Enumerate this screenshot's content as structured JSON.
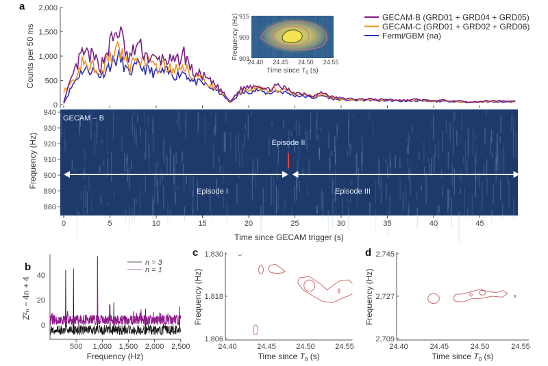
{
  "chart_data": [
    {
      "panel": "a",
      "type": "line",
      "ylabel": "Counts per 50 ms",
      "ylim": [
        0,
        2000
      ],
      "yticks": [
        "0",
        "500",
        "1,000",
        "1,500",
        "2,000"
      ],
      "xlim": [
        -0.2,
        49.5
      ],
      "x": [
        0,
        1,
        2,
        3,
        4,
        5,
        6,
        7,
        8,
        9,
        10,
        11,
        12,
        13,
        14,
        15,
        16,
        17,
        18,
        19,
        20,
        21,
        22,
        23,
        24,
        25,
        26,
        27,
        28,
        29,
        30,
        31,
        32,
        33,
        34,
        35,
        36,
        37,
        38,
        39,
        40,
        41,
        42,
        43,
        44,
        45,
        46,
        47,
        48,
        49
      ],
      "series": [
        {
          "name": "GECAM-B (GRD01 + GRD04 + GRD05)",
          "color": "#7b1f86",
          "values": [
            60,
            600,
            1050,
            1000,
            800,
            1250,
            1550,
            900,
            1250,
            1000,
            900,
            950,
            850,
            1050,
            650,
            600,
            450,
            300,
            60,
            300,
            380,
            420,
            300,
            380,
            330,
            250,
            230,
            180,
            250,
            160,
            130,
            120,
            110,
            120,
            100,
            110,
            100,
            90,
            110,
            90,
            80,
            90,
            85,
            70,
            50,
            70,
            80,
            80,
            70,
            75
          ]
        },
        {
          "name": "GECAM-C (GRD01 + GRD02 + GRD06)",
          "color": "#f0901e",
          "values": [
            300,
            500,
            850,
            850,
            700,
            950,
            1150,
            750,
            950,
            850,
            750,
            800,
            700,
            800,
            550,
            520,
            400,
            270,
            50,
            260,
            320,
            360,
            270,
            330,
            290,
            220,
            200,
            160,
            220,
            140,
            115,
            105,
            100,
            105,
            90,
            95,
            90,
            80,
            95,
            80,
            70,
            80,
            75,
            60,
            45,
            60,
            70,
            70,
            60,
            65
          ]
        },
        {
          "name": "Fermi/GBM (na)",
          "color": "#2b2fb8",
          "values": [
            30,
            420,
            720,
            720,
            600,
            820,
            980,
            640,
            800,
            720,
            640,
            680,
            600,
            680,
            470,
            440,
            340,
            230,
            40,
            220,
            270,
            300,
            230,
            280,
            250,
            190,
            170,
            140,
            190,
            120,
            100,
            90,
            85,
            90,
            80,
            80,
            75,
            70,
            80,
            70,
            60,
            70,
            65,
            55,
            40,
            55,
            60,
            60,
            55,
            60
          ]
        }
      ],
      "inset": {
        "type": "heatmap",
        "xlabel": "Time since T0 (s)",
        "ylabel": "Frequency (Hz)",
        "xticks": [
          "24.40",
          "24.45",
          "24.50",
          "24.55"
        ],
        "yticks": [
          "903",
          "909",
          "915"
        ],
        "xlim": [
          24.4,
          24.56
        ],
        "ylim": [
          903,
          915
        ]
      }
    },
    {
      "panel": "a-spectrogram",
      "type": "heatmap",
      "title": "GECAM – B",
      "xlabel": "Time since GECAM trigger (s)",
      "ylabel": "Frequency (Hz)",
      "xlim": [
        -0.2,
        49.5
      ],
      "ylim": [
        877,
        940
      ],
      "xticks": [
        "0",
        "5",
        "10",
        "15",
        "20",
        "25",
        "30",
        "35",
        "40",
        "45"
      ],
      "yticks": [
        "880",
        "890",
        "900",
        "910",
        "920",
        "930",
        "940"
      ],
      "annotations": [
        {
          "text": "Episode I",
          "from": 0,
          "to": 24.3
        },
        {
          "text": "Episode II",
          "at": 24.5,
          "freq": 910
        },
        {
          "text": "Episode III",
          "from": 24.7,
          "to": 49.3
        }
      ]
    },
    {
      "panel": "b",
      "type": "line",
      "xlabel": "Frequency (Hz)",
      "ylabel": "Z²ₙ − 4n + 4",
      "xlim": [
        0,
        2500
      ],
      "ylim": [
        -12,
        58
      ],
      "xticks": [
        "500",
        "1,000",
        "1,500",
        "2,000",
        "2,500"
      ],
      "yticks": [
        "0",
        "20",
        "40"
      ],
      "series": [
        {
          "name": "n = 3",
          "color": "#111111",
          "baseline": [
            -8,
            0
          ],
          "peaks": [
            [
              300,
              44
            ],
            [
              450,
              45
            ],
            [
              910,
              55
            ],
            [
              1150,
              17
            ],
            [
              1220,
              18
            ],
            [
              1830,
              13
            ],
            [
              2480,
              15
            ]
          ]
        },
        {
          "name": "n = 1",
          "color": "#8e1b8c",
          "baseline": [
            0,
            8
          ],
          "peaks": [
            [
              910,
              54
            ],
            [
              1140,
              16
            ],
            [
              1600,
              11
            ],
            [
              2100,
              10
            ]
          ]
        }
      ]
    },
    {
      "panel": "c",
      "type": "contour",
      "xlabel": "Time since T0 (s)",
      "ylabel": "Frequency (Hz)",
      "xlim": [
        24.4,
        24.56
      ],
      "ylim": [
        1806,
        1830
      ],
      "xticks": [
        "24.40",
        "24.45",
        "24.50",
        "24.55"
      ],
      "yticks": [
        "1,806",
        "1,818",
        "1,830"
      ],
      "color": "#c86a6a",
      "ellipses": [
        [
          24.443,
          1825.5,
          0.003,
          1.2
        ],
        [
          24.505,
          1821,
          0.007,
          1.6
        ],
        [
          24.543,
          1819.5,
          0.001,
          0.6
        ],
        [
          24.436,
          1808.5,
          0.003,
          1.4
        ]
      ],
      "paths": [
        [
          [
            24.413,
            1829.8
          ],
          [
            24.416,
            1829.4
          ],
          [
            24.419,
            1829.8
          ]
        ],
        [
          [
            24.452,
            1825.8
          ],
          [
            24.455,
            1826.8
          ],
          [
            24.462,
            1827
          ],
          [
            24.468,
            1826
          ],
          [
            24.474,
            1825
          ],
          [
            24.47,
            1824.6
          ],
          [
            24.462,
            1824.4
          ],
          [
            24.455,
            1824.8
          ],
          [
            24.452,
            1825.8
          ]
        ],
        [
          [
            24.56,
            1821.6
          ],
          [
            24.555,
            1822.6
          ],
          [
            24.545,
            1822.5
          ],
          [
            24.535,
            1821
          ],
          [
            24.528,
            1819.8
          ],
          [
            24.518,
            1821.6
          ],
          [
            24.505,
            1823.6
          ],
          [
            24.492,
            1823.2
          ],
          [
            24.49,
            1821.8
          ],
          [
            24.497,
            1819.8
          ],
          [
            24.51,
            1818
          ],
          [
            24.522,
            1816.5
          ],
          [
            24.535,
            1816.2
          ],
          [
            24.545,
            1817.2
          ],
          [
            24.56,
            1818.6
          ]
        ]
      ]
    },
    {
      "panel": "d",
      "type": "contour",
      "xlabel": "Time since T0 (s)",
      "ylabel": "Frequency (Hz)",
      "xlim": [
        24.4,
        24.56
      ],
      "ylim": [
        2709,
        2745
      ],
      "xticks": [
        "24.40",
        "24.45",
        "24.50",
        "24.55"
      ],
      "yticks": [
        "2,709",
        "2,727",
        "2,745"
      ],
      "color": "#c86a6a",
      "ellipses": [
        [
          24.443,
          2726,
          0.007,
          2.1
        ],
        [
          24.489,
          2727.6,
          0.0015,
          0.6
        ],
        [
          24.503,
          2728.5,
          0.004,
          1
        ],
        [
          24.543,
          2727,
          0.0007,
          0.5
        ]
      ],
      "paths": [
        [
          [
            24.467,
            2726
          ],
          [
            24.47,
            2727.8
          ],
          [
            24.48,
            2728
          ],
          [
            24.49,
            2729
          ],
          [
            24.5,
            2730
          ],
          [
            24.51,
            2729
          ],
          [
            24.52,
            2728.5
          ],
          [
            24.528,
            2729.4
          ],
          [
            24.534,
            2728.2
          ],
          [
            24.528,
            2726.6
          ],
          [
            24.515,
            2727
          ],
          [
            24.5,
            2726
          ],
          [
            24.49,
            2726
          ],
          [
            24.48,
            2724.6
          ],
          [
            24.47,
            2724.8
          ],
          [
            24.467,
            2726
          ]
        ]
      ]
    }
  ],
  "labels": {
    "a": "a",
    "b": "b",
    "c": "c",
    "d": "d"
  }
}
